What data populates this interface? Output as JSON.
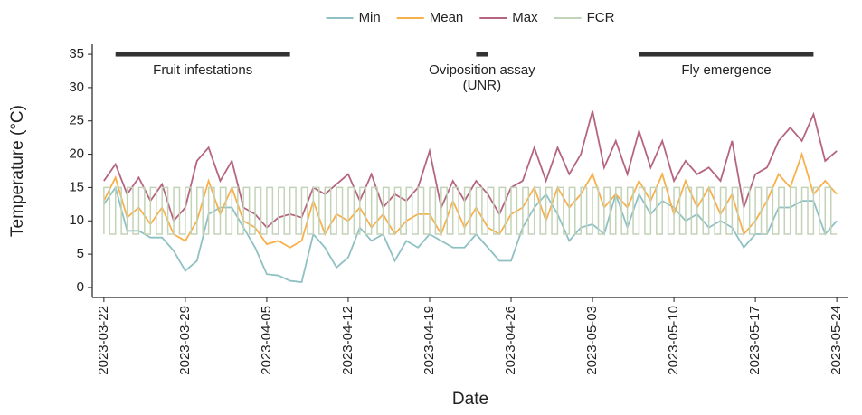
{
  "chart_data": {
    "type": "line",
    "x_label": "Date",
    "y_label": "Temperature (°C)",
    "x": [
      "2023-03-22",
      "2023-03-23",
      "2023-03-24",
      "2023-03-25",
      "2023-03-26",
      "2023-03-27",
      "2023-03-28",
      "2023-03-29",
      "2023-03-30",
      "2023-03-31",
      "2023-04-01",
      "2023-04-02",
      "2023-04-03",
      "2023-04-04",
      "2023-04-05",
      "2023-04-06",
      "2023-04-07",
      "2023-04-08",
      "2023-04-09",
      "2023-04-10",
      "2023-04-11",
      "2023-04-12",
      "2023-04-13",
      "2023-04-14",
      "2023-04-15",
      "2023-04-16",
      "2023-04-17",
      "2023-04-18",
      "2023-04-19",
      "2023-04-20",
      "2023-04-21",
      "2023-04-22",
      "2023-04-23",
      "2023-04-24",
      "2023-04-25",
      "2023-04-26",
      "2023-04-27",
      "2023-04-28",
      "2023-04-29",
      "2023-04-30",
      "2023-05-01",
      "2023-05-02",
      "2023-05-03",
      "2023-05-04",
      "2023-05-05",
      "2023-05-06",
      "2023-05-07",
      "2023-05-08",
      "2023-05-09",
      "2023-05-10",
      "2023-05-11",
      "2023-05-12",
      "2023-05-13",
      "2023-05-14",
      "2023-05-15",
      "2023-05-16",
      "2023-05-17",
      "2023-05-18",
      "2023-05-19",
      "2023-05-20",
      "2023-05-21",
      "2023-05-22",
      "2023-05-23",
      "2023-05-24"
    ],
    "series": [
      {
        "name": "Min",
        "color": "#8fc1c4",
        "values": [
          12.5,
          15,
          8.5,
          8.5,
          7.5,
          7.5,
          5.5,
          2.5,
          4,
          11,
          12,
          12,
          9,
          6,
          2,
          1.8,
          1,
          0.8,
          8,
          6,
          3,
          4.5,
          9,
          7,
          8,
          4,
          7,
          6,
          8,
          7,
          6,
          6,
          8,
          6,
          4,
          4,
          9,
          12,
          14,
          11,
          7,
          9,
          9.5,
          8,
          14,
          9,
          14,
          11,
          13,
          12,
          10,
          11,
          9,
          10,
          9,
          6,
          8,
          8,
          12,
          12,
          13,
          13,
          8,
          10
        ]
      },
      {
        "name": "Mean",
        "color": "#f7b04b",
        "values": [
          13,
          16.5,
          10.5,
          12,
          9.5,
          12,
          8,
          7,
          10,
          16,
          11,
          15,
          10,
          9,
          6.5,
          7,
          6,
          7,
          13,
          8,
          11,
          10,
          12,
          9,
          11,
          8,
          10,
          11,
          11,
          8,
          13,
          9,
          12,
          9,
          8,
          11,
          12,
          15,
          10,
          15,
          12,
          14,
          17,
          12,
          14,
          12,
          16,
          13,
          17,
          11,
          16,
          12,
          15,
          11,
          14,
          8,
          10,
          13,
          17,
          15,
          20,
          14,
          16,
          14
        ]
      },
      {
        "name": "Max",
        "color": "#b5657f",
        "values": [
          16,
          18.5,
          14,
          16.5,
          13,
          15.5,
          10,
          12,
          19,
          21,
          16,
          19,
          12,
          11,
          9,
          10.5,
          11,
          10.5,
          15,
          14,
          15.5,
          17,
          13,
          17,
          12,
          14,
          13,
          15,
          20.5,
          12,
          16,
          13,
          16,
          14,
          11,
          15,
          16,
          21,
          16,
          21,
          17,
          20,
          26.5,
          18,
          22,
          17,
          23.5,
          18,
          22,
          16,
          19,
          17,
          18,
          16,
          22,
          12,
          17,
          18,
          22,
          24,
          22,
          26,
          19,
          20.5
        ]
      },
      {
        "name": "FCR",
        "color": "#c3d3b8",
        "range": [
          8,
          15
        ]
      }
    ],
    "annotations": [
      {
        "lines": [
          "Fruit infestations"
        ],
        "start": "2023-03-23",
        "end": "2023-04-07",
        "y": 35
      },
      {
        "lines": [
          "Oviposition assay",
          "(UNR)"
        ],
        "start": "2023-04-23",
        "end": "2023-04-24",
        "y": 35
      },
      {
        "lines": [
          "Fly emergence"
        ],
        "start": "2023-05-07",
        "end": "2023-05-22",
        "y": 35
      }
    ],
    "xlim": [
      "2023-03-21",
      "2023-05-25"
    ],
    "xticks": [
      "2023-03-22",
      "2023-03-29",
      "2023-04-05",
      "2023-04-12",
      "2023-04-19",
      "2023-04-26",
      "2023-05-03",
      "2023-05-10",
      "2023-05-17",
      "2023-05-24"
    ],
    "ylim": [
      -1.5,
      36.5
    ],
    "yticks": [
      0,
      5,
      10,
      15,
      20,
      25,
      30,
      35
    ],
    "legend": "top"
  }
}
